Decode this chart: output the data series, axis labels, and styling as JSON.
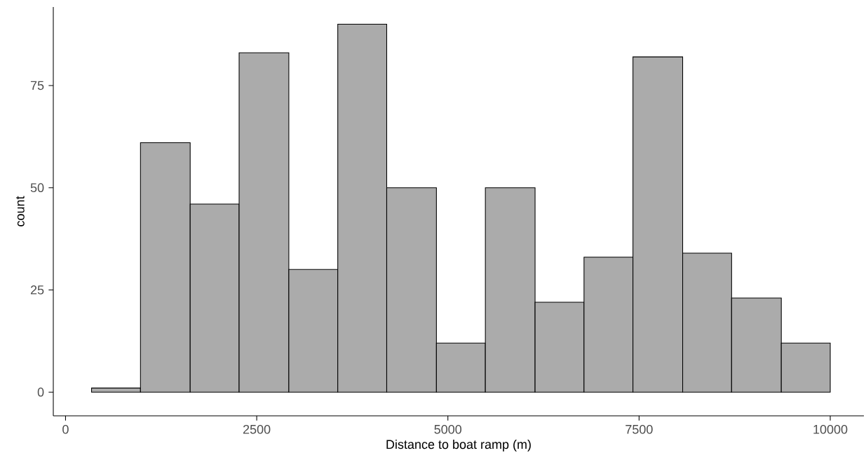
{
  "chart_data": {
    "type": "histogram",
    "xlabel": "Distance to boat ramp (m)",
    "ylabel": "count",
    "bins": [
      340,
      980,
      1630,
      2270,
      2920,
      3560,
      4200,
      4850,
      5490,
      6140,
      6780,
      7420,
      8070,
      8710,
      9360,
      10000
    ],
    "values": [
      1,
      61,
      46,
      83,
      30,
      90,
      50,
      12,
      50,
      22,
      33,
      82,
      34,
      23,
      12
    ],
    "color": "#ababab",
    "xlim": [
      -160,
      10440
    ],
    "ylim": [
      -5.8,
      94.2
    ],
    "xticks": [
      0,
      2500,
      5000,
      7500,
      10000
    ],
    "yticks": [
      0,
      25,
      50,
      75
    ]
  }
}
